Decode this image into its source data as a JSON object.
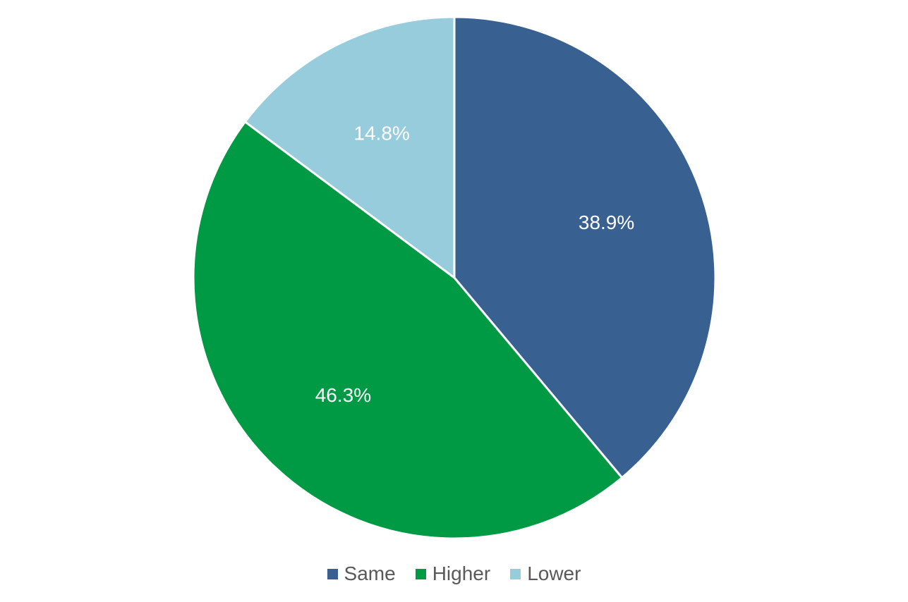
{
  "chart_data": {
    "type": "pie",
    "categories": [
      "Same",
      "Higher",
      "Lower"
    ],
    "values": [
      38.9,
      46.3,
      14.8
    ],
    "data_labels": [
      "38.9%",
      "46.3%",
      "14.8%"
    ],
    "colors": [
      "#386192",
      "#009A44",
      "#96CCDC"
    ],
    "start_angle_deg": 0,
    "direction": "clockwise",
    "title": "",
    "legend_position": "bottom"
  },
  "legend": {
    "items": [
      {
        "label": "Same",
        "color": "#386192"
      },
      {
        "label": "Higher",
        "color": "#009A44"
      },
      {
        "label": "Lower",
        "color": "#96CCDC"
      }
    ]
  }
}
